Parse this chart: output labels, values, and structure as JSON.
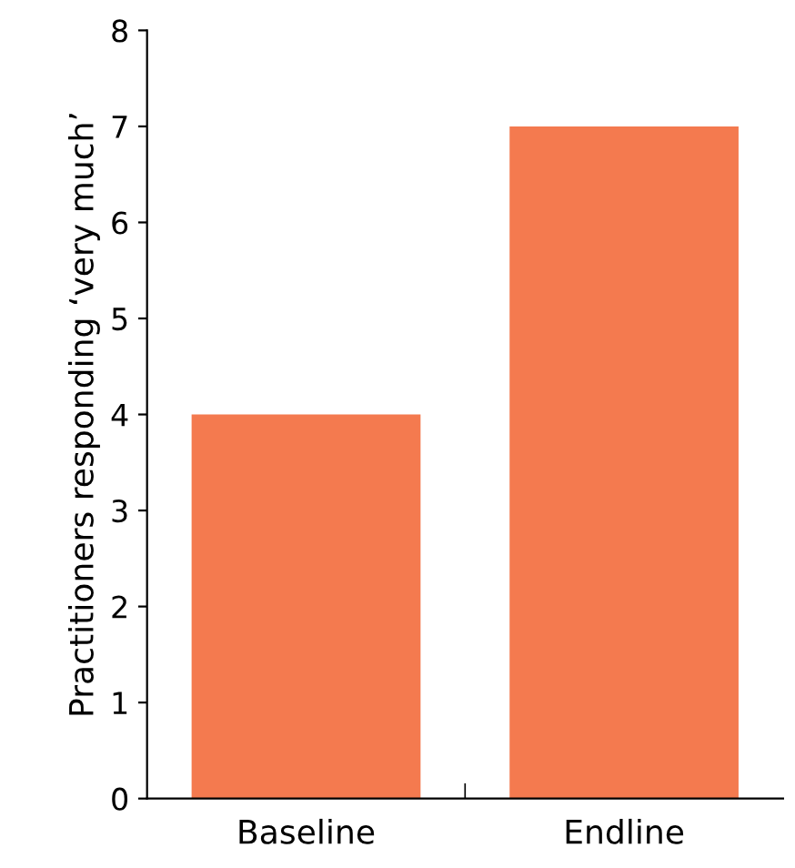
{
  "chart_data": {
    "type": "bar",
    "ylabel": "Practitioners responding ‘very much’",
    "categories": [
      "Baseline",
      "Endline"
    ],
    "values": [
      4,
      7
    ],
    "color": "#f47a4f",
    "ylim": [
      0,
      8
    ],
    "yticks": [
      0,
      1,
      2,
      3,
      4,
      5,
      6,
      7,
      8
    ],
    "grid": false
  }
}
